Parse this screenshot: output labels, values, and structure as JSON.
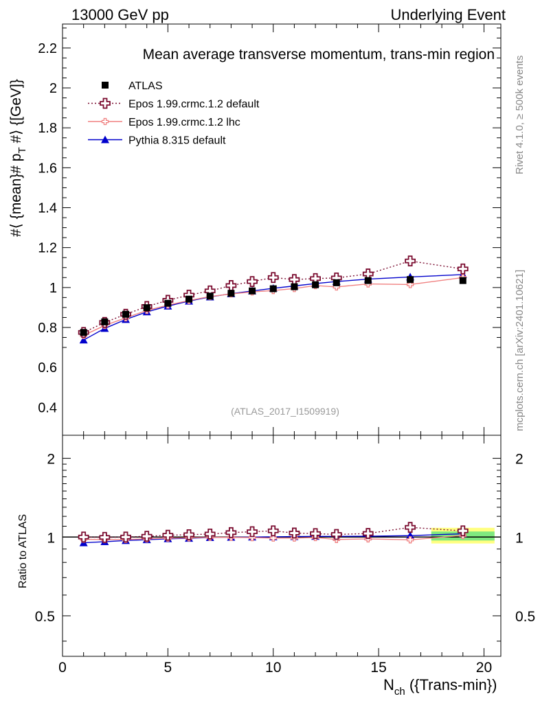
{
  "header": {
    "left": "13000 GeV pp",
    "right": "Underlying Event"
  },
  "side_labels": {
    "rivet": "Rivet 4.1.0, ≥ 500k events",
    "mcplots": "mcplots.cern.ch [arXiv:2401.10621]"
  },
  "chart_data": [
    {
      "type": "line",
      "title": "Mean average transverse momentum, trans-min region",
      "watermark": "(ATLAS_2017_I1509919)",
      "ylabel": "#⟨ {mean}# p_T #⟩ {[GeV]}",
      "xlabel": "N_ch ({Trans-min})",
      "xlim": [
        0,
        20.8
      ],
      "ylim": [
        0.26,
        2.32
      ],
      "yticks": [
        0.4,
        0.6,
        0.8,
        1,
        1.2,
        1.4,
        1.6,
        1.8,
        2,
        2.2
      ],
      "ytick_labels": [
        "0.4",
        "0.6",
        "0.8",
        "1",
        "1.2",
        "1.4",
        "1.6",
        "1.8",
        "2",
        "2.2"
      ],
      "legend_position": "top-left",
      "series": [
        {
          "name": "ATLAS",
          "color": "#000000",
          "marker": "square",
          "x": [
            1,
            2,
            3,
            4,
            5,
            6,
            7,
            8,
            9,
            10,
            11,
            12,
            13,
            14.5,
            16.5,
            19
          ],
          "values": [
            0.775,
            0.828,
            0.866,
            0.899,
            0.921,
            0.942,
            0.957,
            0.971,
            0.983,
            0.994,
            1.004,
            1.014,
            1.024,
            1.035,
            1.04,
            1.035
          ]
        },
        {
          "name": "Epos 1.99.crmc.1.2 default",
          "color": "#7a0b2f",
          "marker": "open-cross",
          "linestyle": "dotted",
          "x": [
            1,
            2,
            3,
            4,
            5,
            6,
            7,
            8,
            9,
            10,
            11,
            12,
            13,
            14.5,
            16.5,
            19
          ],
          "values": [
            0.775,
            0.825,
            0.866,
            0.905,
            0.936,
            0.962,
            0.983,
            1.01,
            1.03,
            1.05,
            1.04,
            1.045,
            1.048,
            1.068,
            1.133,
            1.093
          ]
        },
        {
          "name": "Epos 1.99.crmc.1.2 lhc",
          "color": "#f08080",
          "marker": "small-cross",
          "linestyle": "solid",
          "x": [
            1,
            2,
            3,
            4,
            5,
            6,
            7,
            8,
            9,
            10,
            11,
            12,
            13,
            14.5,
            16.5,
            19
          ],
          "values": [
            0.76,
            0.81,
            0.848,
            0.885,
            0.912,
            0.935,
            0.955,
            0.968,
            0.978,
            0.985,
            0.995,
            1.01,
            1.003,
            1.018,
            1.015,
            1.05
          ]
        },
        {
          "name": "Pythia 8.315 default",
          "color": "#0000cc",
          "marker": "triangle",
          "linestyle": "solid",
          "x": [
            1,
            2,
            3,
            4,
            5,
            6,
            7,
            8,
            9,
            10,
            11,
            12,
            13,
            14.5,
            16.5,
            19
          ],
          "values": [
            0.737,
            0.795,
            0.84,
            0.878,
            0.907,
            0.932,
            0.953,
            0.969,
            0.983,
            0.996,
            1.008,
            1.02,
            1.03,
            1.042,
            1.053,
            1.065
          ]
        }
      ]
    },
    {
      "type": "line",
      "ylabel": "Ratio to ATLAS",
      "xlabel": "N_ch ({Trans-min})",
      "xlim": [
        0,
        20.8
      ],
      "ylim": [
        0.35,
        2.45
      ],
      "yscale": "log",
      "yticks": [
        0.5,
        1,
        2
      ],
      "ytick_labels": [
        "0.5",
        "1",
        "2"
      ],
      "xticks": [
        0,
        5,
        10,
        15,
        20
      ],
      "xtick_labels": [
        "0",
        "5",
        "10",
        "15",
        "20"
      ],
      "band": {
        "x_range": [
          17.5,
          20.5
        ],
        "yellow": [
          0.945,
          1.085
        ],
        "green": [
          0.97,
          1.05
        ]
      },
      "series": [
        {
          "name": "Epos 1.99.crmc.1.2 default",
          "color": "#7a0b2f",
          "marker": "open-cross",
          "linestyle": "dotted",
          "x": [
            1,
            2,
            3,
            4,
            5,
            6,
            7,
            8,
            9,
            10,
            11,
            12,
            13,
            14.5,
            16.5,
            19
          ],
          "values": [
            1.0,
            0.997,
            1.0,
            1.007,
            1.016,
            1.021,
            1.027,
            1.04,
            1.048,
            1.056,
            1.036,
            1.031,
            1.023,
            1.032,
            1.089,
            1.056
          ]
        },
        {
          "name": "Epos 1.99.crmc.1.2 lhc",
          "color": "#f08080",
          "marker": "small-cross",
          "linestyle": "solid",
          "x": [
            1,
            2,
            3,
            4,
            5,
            6,
            7,
            8,
            9,
            10,
            11,
            12,
            13,
            14.5,
            16.5,
            19
          ],
          "values": [
            0.981,
            0.978,
            0.979,
            0.984,
            0.99,
            0.993,
            0.998,
            0.997,
            0.995,
            0.991,
            0.991,
            0.996,
            0.979,
            0.984,
            0.976,
            1.014
          ]
        },
        {
          "name": "Pythia 8.315 default",
          "color": "#0000cc",
          "marker": "triangle",
          "linestyle": "solid",
          "x": [
            1,
            2,
            3,
            4,
            5,
            6,
            7,
            8,
            9,
            10,
            11,
            12,
            13,
            14.5,
            16.5,
            19
          ],
          "values": [
            0.951,
            0.96,
            0.97,
            0.977,
            0.985,
            0.989,
            0.996,
            0.998,
            1.0,
            1.002,
            1.004,
            1.006,
            1.006,
            1.007,
            1.013,
            1.029
          ]
        }
      ]
    }
  ]
}
